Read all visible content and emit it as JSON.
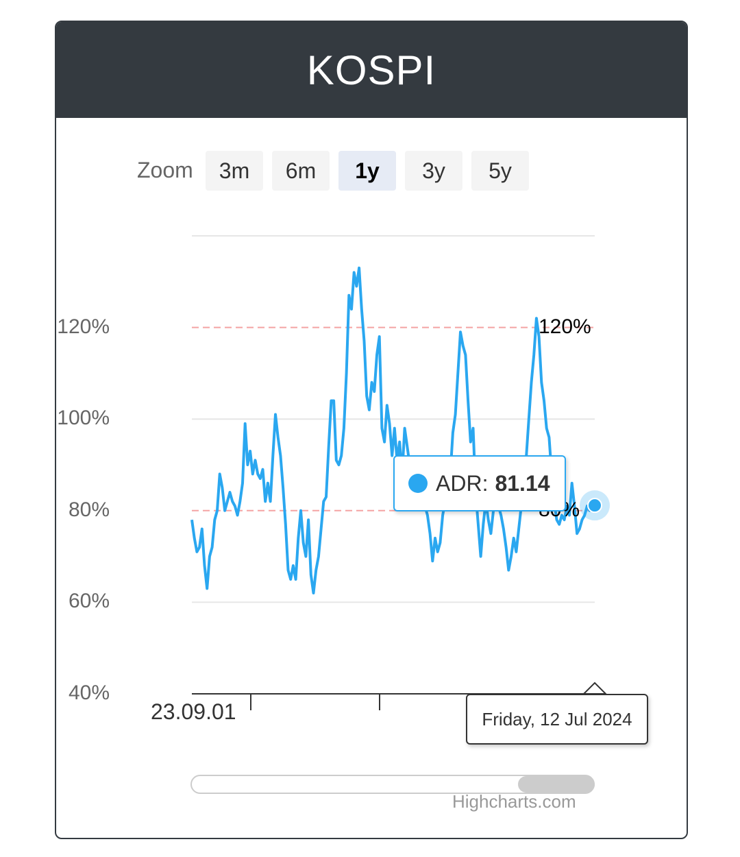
{
  "header": {
    "title": "KOSPI"
  },
  "range_selector": {
    "label": "Zoom",
    "buttons": [
      "3m",
      "6m",
      "1y",
      "3y",
      "5y"
    ],
    "selected": "1y"
  },
  "tooltip": {
    "series_name": "ADR",
    "separator": ":",
    "value": "81.14"
  },
  "date_tooltip": "Friday, 12 Jul 2024",
  "credits": "Highcharts.com",
  "colors": {
    "series": "#2aa7f0",
    "plotline": "#f4a3a3",
    "header_bg": "#343a40"
  },
  "chart_data": {
    "type": "line",
    "title": "KOSPI",
    "xlabel": "",
    "ylabel": "",
    "y_ticks": [
      "40%",
      "60%",
      "80%",
      "100%",
      "120%"
    ],
    "ylim": [
      40,
      140
    ],
    "x_tick_labels": [
      "23.09.01"
    ],
    "plot_lines": [
      {
        "value": 120,
        "label": "120%"
      },
      {
        "value": 80,
        "label": "80%"
      }
    ],
    "grid": true,
    "legend": "none",
    "series": [
      {
        "name": "ADR",
        "values": [
          78,
          74,
          71,
          72,
          76,
          68,
          63,
          70,
          72,
          78,
          80,
          88,
          85,
          80,
          82,
          84,
          82,
          81,
          79,
          82,
          86,
          99,
          90,
          93,
          88,
          91,
          88,
          87,
          89,
          82,
          86,
          82,
          92,
          101,
          96,
          92,
          85,
          77,
          67,
          65,
          68,
          65,
          74,
          80,
          73,
          70,
          78,
          66,
          62,
          67,
          70,
          76,
          82,
          83,
          94,
          104,
          104,
          91,
          90,
          92,
          98,
          110,
          127,
          124,
          132,
          129,
          133,
          124,
          117,
          105,
          102,
          108,
          106,
          114,
          118,
          98,
          95,
          103,
          99,
          92,
          98,
          91,
          95,
          88,
          98,
          94,
          90,
          84,
          89,
          87,
          82,
          86,
          81,
          79,
          75,
          69,
          74,
          71,
          73,
          79,
          82,
          84,
          88,
          97,
          101,
          110,
          119,
          116,
          114,
          104,
          95,
          98,
          84,
          77,
          70,
          77,
          82,
          78,
          75,
          80,
          84,
          81,
          79,
          76,
          72,
          67,
          70,
          74,
          71,
          76,
          81,
          87,
          92,
          100,
          108,
          114,
          122,
          118,
          108,
          104,
          98,
          96,
          88,
          82,
          78,
          77,
          79,
          78,
          81,
          79,
          86,
          81,
          75,
          76,
          78,
          79,
          81,
          80,
          81,
          81.14
        ]
      }
    ]
  }
}
